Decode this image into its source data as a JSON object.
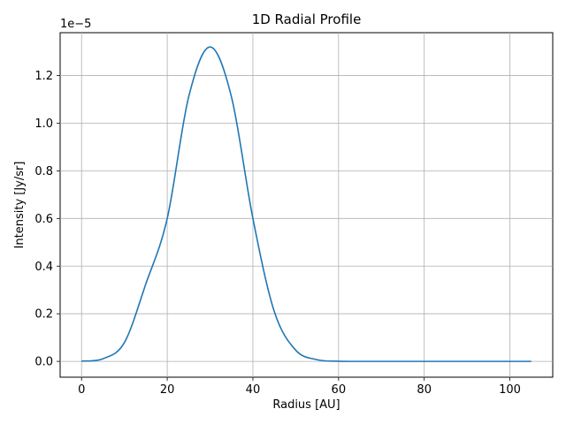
{
  "chart_data": {
    "type": "line",
    "title": "1D Radial Profile",
    "xlabel": "Radius [AU]",
    "ylabel": "Intensity [Jy/sr]",
    "y_offset_label": "1e−5",
    "xlim": [
      -5,
      110
    ],
    "ylim": [
      -6.63e-07,
      1.38e-05
    ],
    "grid": true,
    "legend": "none",
    "line_color": "#1f77b4",
    "x_ticks": [
      0,
      20,
      40,
      60,
      80,
      100
    ],
    "x_tick_labels": [
      "0",
      "20",
      "40",
      "60",
      "80",
      "100"
    ],
    "y_ticks": [
      0,
      2e-06,
      4e-06,
      6e-06,
      8e-06,
      1e-05,
      1.2e-05
    ],
    "y_tick_labels": [
      "0.0",
      "0.2",
      "0.4",
      "0.6",
      "0.8",
      "1.0",
      "1.2"
    ],
    "series": [
      {
        "x": [
          0,
          5,
          10,
          15,
          20,
          25,
          30,
          35,
          40,
          45,
          50,
          55,
          60,
          65,
          70,
          80,
          90,
          100,
          105
        ],
        "y": [
          1e-08,
          1.1e-07,
          7.9e-07,
          3.25e-06,
          6e-06,
          1.11e-05,
          1.32e-05,
          1.11e-05,
          6e-06,
          2.09e-06,
          4.7e-07,
          7e-08,
          7e-09,
          0,
          0,
          0,
          0,
          0,
          0
        ]
      }
    ]
  }
}
